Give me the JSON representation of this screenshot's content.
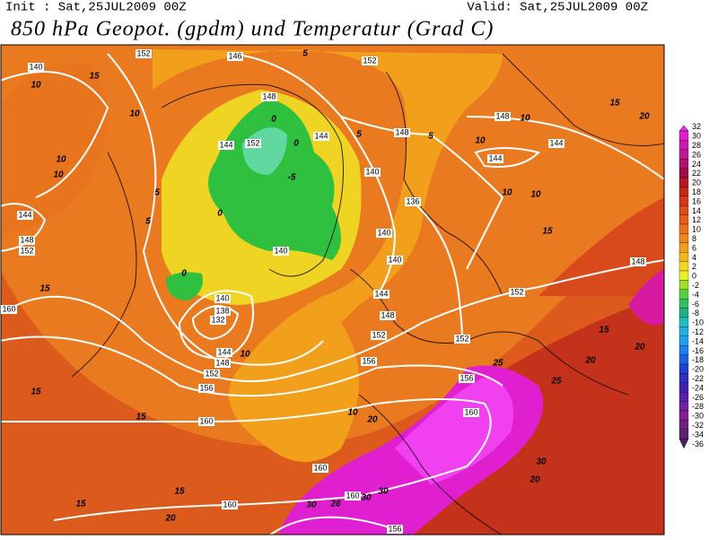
{
  "header": {
    "init": "Init : Sat,25JUL2009 00Z",
    "valid": "Valid: Sat,25JUL2009 00Z",
    "title": "850 hPa Geopot. (gpdm) und Temperatur (Grad C)"
  },
  "geopotential_labels": [
    140,
    152,
    146,
    152,
    148,
    152,
    144,
    144,
    148,
    148,
    144,
    144,
    140,
    136,
    144,
    148,
    152,
    140,
    140,
    140,
    140,
    138,
    132,
    144,
    148,
    152,
    156,
    144,
    148,
    152,
    156,
    152,
    156,
    152,
    148,
    160,
    160,
    160,
    160,
    160,
    160,
    156
  ],
  "temperature_labels": [
    10,
    15,
    10,
    5,
    0,
    0,
    5,
    5,
    10,
    10,
    15,
    20,
    10,
    10,
    5,
    0,
    10,
    10,
    15,
    0,
    -5,
    15,
    10,
    15,
    15,
    10,
    20,
    25,
    20,
    25,
    15,
    20,
    30,
    20,
    30,
    30,
    28,
    30,
    20,
    15,
    15,
    5
  ],
  "colorbar": {
    "levels": [
      32,
      30,
      28,
      26,
      24,
      22,
      20,
      18,
      16,
      14,
      12,
      10,
      8,
      6,
      4,
      2,
      0,
      -2,
      -4,
      -6,
      -8,
      -10,
      -12,
      -14,
      -16,
      -18,
      -20,
      -22,
      -24,
      -26,
      -28,
      -30,
      -32,
      -34,
      -36
    ],
    "colors": [
      "#f030f0",
      "#e020d0",
      "#d018b0",
      "#c01890",
      "#b01070",
      "#a00c48",
      "#b01a20",
      "#c42814",
      "#d43816",
      "#de4a18",
      "#e65c18",
      "#ee7018",
      "#f08618",
      "#f09e18",
      "#f0ba18",
      "#f0d820",
      "#e8f028",
      "#a0e028",
      "#58d040",
      "#30c060",
      "#20b088",
      "#20c0c0",
      "#20b0e0",
      "#20a0f0",
      "#2080f0",
      "#2060e0",
      "#2040d0",
      "#3030c0",
      "#4020b0",
      "#5c20b0",
      "#7020a0",
      "#802090",
      "#702080",
      "#602070",
      "#502060"
    ]
  }
}
